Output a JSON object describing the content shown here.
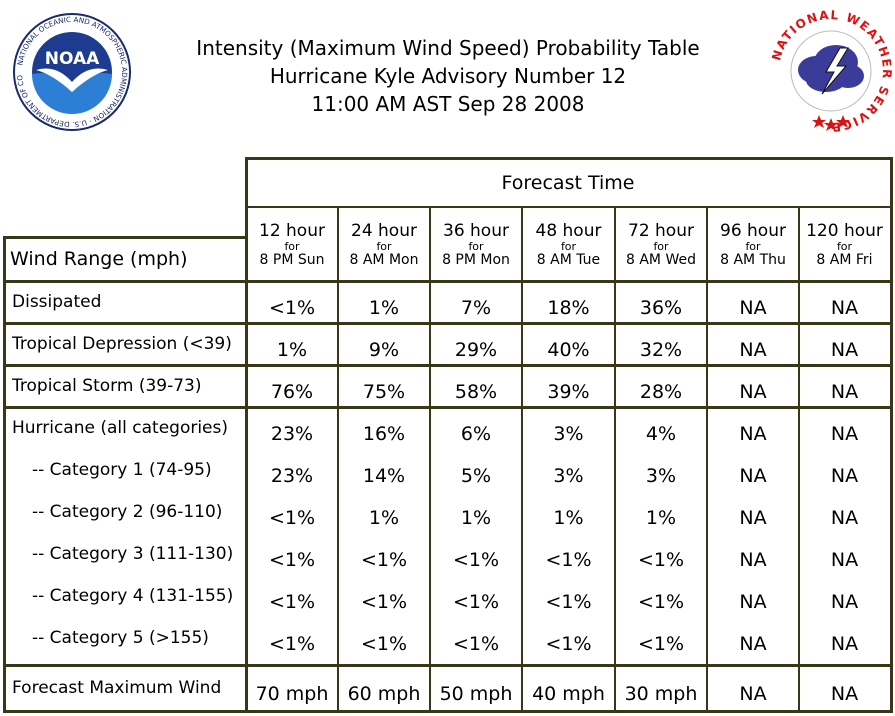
{
  "header": {
    "title_lines": [
      "Intensity (Maximum Wind Speed) Probability Table",
      "Hurricane Kyle Advisory Number 12",
      "11:00 AM AST Sep 28 2008"
    ],
    "noaa_logo": {
      "wordmark": "NOAA",
      "ring_text": "NATIONAL OCEANIC AND ATMOSPHERIC ADMINISTRATION · U.S. DEPARTMENT OF COMMERCE"
    },
    "nws_logo": {
      "ring_text": "NATIONAL WEATHER SERVICE"
    }
  },
  "table": {
    "forecast_time_label": "Forecast Time",
    "row_header_label": "Wind Range (mph)",
    "columns": [
      {
        "hours": "12 hour",
        "for": "for",
        "when": "8 PM Sun"
      },
      {
        "hours": "24 hour",
        "for": "for",
        "when": "8 AM Mon"
      },
      {
        "hours": "36 hour",
        "for": "for",
        "when": "8 PM Mon"
      },
      {
        "hours": "48 hour",
        "for": "for",
        "when": "8 AM Tue"
      },
      {
        "hours": "72 hour",
        "for": "for",
        "when": "8 AM Wed"
      },
      {
        "hours": "96 hour",
        "for": "for",
        "when": "8 AM Thu"
      },
      {
        "hours": "120 hour",
        "for": "for",
        "when": "8 AM Fri"
      }
    ],
    "rows": [
      {
        "label": "Dissipated",
        "values": [
          "<1%",
          "1%",
          "7%",
          "18%",
          "36%",
          "NA",
          "NA"
        ]
      },
      {
        "label": "Tropical Depression (<39)",
        "values": [
          "1%",
          "9%",
          "29%",
          "40%",
          "32%",
          "NA",
          "NA"
        ]
      },
      {
        "label": "Tropical Storm (39-73)",
        "values": [
          "76%",
          "75%",
          "58%",
          "39%",
          "28%",
          "NA",
          "NA"
        ]
      },
      {
        "label": "Hurricane (all categories)",
        "values": [
          "23%",
          "16%",
          "6%",
          "3%",
          "4%",
          "NA",
          "NA"
        ]
      },
      {
        "label": "-- Category 1 (74-95)",
        "values": [
          "23%",
          "14%",
          "5%",
          "3%",
          "3%",
          "NA",
          "NA"
        ]
      },
      {
        "label": "-- Category 2 (96-110)",
        "values": [
          "<1%",
          "1%",
          "1%",
          "1%",
          "1%",
          "NA",
          "NA"
        ]
      },
      {
        "label": "-- Category 3 (111-130)",
        "values": [
          "<1%",
          "<1%",
          "<1%",
          "<1%",
          "<1%",
          "NA",
          "NA"
        ]
      },
      {
        "label": "-- Category 4 (131-155)",
        "values": [
          "<1%",
          "<1%",
          "<1%",
          "<1%",
          "<1%",
          "NA",
          "NA"
        ]
      },
      {
        "label": "-- Category 5 (>155)",
        "values": [
          "<1%",
          "<1%",
          "<1%",
          "<1%",
          "<1%",
          "NA",
          "NA"
        ]
      }
    ],
    "max_wind_row": {
      "label": "Forecast Maximum Wind",
      "values": [
        "70 mph",
        "60 mph",
        "50 mph",
        "40 mph",
        "30 mph",
        "NA",
        "NA"
      ]
    }
  }
}
